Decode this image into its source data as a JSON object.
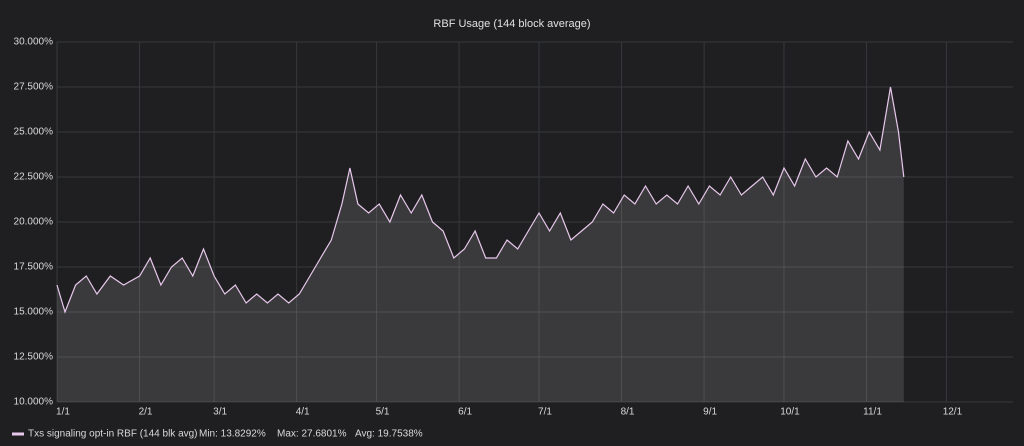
{
  "chart_data": {
    "type": "area",
    "title": "RBF Usage (144 block average)",
    "x": [
      "1/1",
      "1/4",
      "1/8",
      "1/12",
      "1/16",
      "1/21",
      "1/26",
      "2/1",
      "2/5",
      "2/9",
      "2/13",
      "2/17",
      "2/21",
      "2/25",
      "3/1",
      "3/5",
      "3/9",
      "3/13",
      "3/17",
      "3/21",
      "3/25",
      "3/29",
      "4/2",
      "4/6",
      "4/10",
      "4/14",
      "4/18",
      "4/21",
      "4/24",
      "4/28",
      "5/2",
      "5/6",
      "5/10",
      "5/14",
      "5/18",
      "5/22",
      "5/26",
      "5/30",
      "6/3",
      "6/7",
      "6/11",
      "6/15",
      "6/19",
      "6/23",
      "6/27",
      "7/1",
      "7/5",
      "7/9",
      "7/13",
      "7/17",
      "7/21",
      "7/25",
      "7/29",
      "8/2",
      "8/6",
      "8/10",
      "8/14",
      "8/18",
      "8/22",
      "8/26",
      "8/30",
      "9/3",
      "9/7",
      "9/11",
      "9/15",
      "9/19",
      "9/23",
      "9/27",
      "10/1",
      "10/5",
      "10/9",
      "10/13",
      "10/17",
      "10/21",
      "10/25",
      "10/29",
      "11/2",
      "11/6",
      "11/10",
      "11/13",
      "11/15"
    ],
    "series": [
      {
        "name": "Txs signaling opt-in RBF (144 blk avg)",
        "color": "#e8c8ec",
        "values": [
          16.5,
          15,
          16.5,
          17,
          16,
          17,
          16.5,
          17,
          18,
          16.5,
          17.5,
          18,
          17,
          18.5,
          17,
          16,
          16.5,
          15.5,
          16,
          15.5,
          16,
          15.5,
          16,
          17,
          18,
          19,
          21,
          23,
          21,
          20.5,
          21,
          20,
          21.5,
          20.5,
          21.5,
          20,
          19.5,
          18,
          18.5,
          19.5,
          18,
          18,
          19,
          18.5,
          19.5,
          20.5,
          19.5,
          20.5,
          19,
          19.5,
          20,
          21,
          20.5,
          21.5,
          21,
          22,
          21,
          21.5,
          21,
          22,
          21,
          22,
          21.5,
          22.5,
          21.5,
          22,
          22.5,
          21.5,
          23,
          22,
          23.5,
          22.5,
          23,
          22.5,
          24.5,
          23.5,
          25,
          24,
          27.5,
          25,
          22.5
        ]
      }
    ],
    "xlim": [
      "1/1",
      "12/26"
    ],
    "xticks": [
      "1/1",
      "2/1",
      "3/1",
      "4/1",
      "5/1",
      "6/1",
      "7/1",
      "8/1",
      "9/1",
      "10/1",
      "11/1",
      "12/1"
    ],
    "ylim": [
      10,
      30
    ],
    "yticks": [
      {
        "value": 10,
        "label": "10.000%"
      },
      {
        "value": 12.5,
        "label": "12.500%"
      },
      {
        "value": 15,
        "label": "15.000%"
      },
      {
        "value": 17.5,
        "label": "17.500%"
      },
      {
        "value": 20,
        "label": "20.000%"
      },
      {
        "value": 22.5,
        "label": "22.500%"
      },
      {
        "value": 25,
        "label": "25.000%"
      },
      {
        "value": 27.5,
        "label": "27.500%"
      },
      {
        "value": 30,
        "label": "30.000%"
      }
    ],
    "grid": true,
    "legend_stats": [
      "Min: 13.8292%",
      "Max: 27.6801%",
      "Avg: 19.7538%"
    ]
  }
}
